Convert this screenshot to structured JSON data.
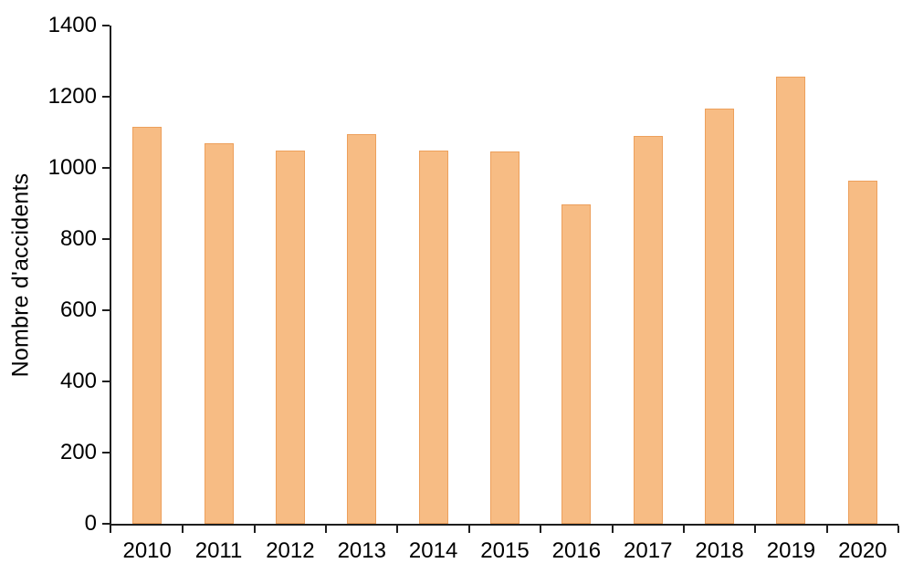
{
  "chart_data": {
    "type": "bar",
    "title": "",
    "categories": [
      "2010",
      "2011",
      "2012",
      "2013",
      "2014",
      "2015",
      "2016",
      "2017",
      "2018",
      "2019",
      "2020"
    ],
    "values": [
      1116,
      1070,
      1049,
      1094,
      1049,
      1046,
      897,
      1089,
      1167,
      1256,
      963
    ],
    "xlabel": "",
    "ylabel": "Nombre d'accidents",
    "ylim": [
      0,
      1400
    ],
    "ytick_step": 200,
    "grid": false,
    "legend": false,
    "colors": {
      "bar_fill": "#F7BC84",
      "bar_border": "#EDA05C",
      "axis": "#1f1f1f",
      "text": "#000000",
      "background": "#ffffff"
    }
  }
}
